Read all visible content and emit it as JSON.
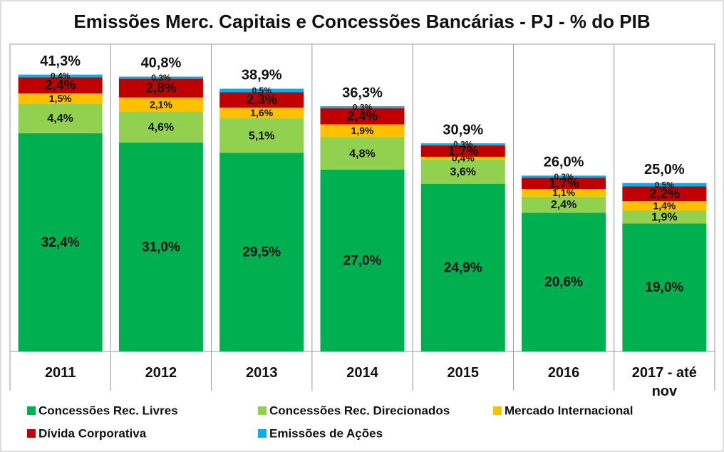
{
  "chart_data": {
    "type": "stacked-bar",
    "title": "Emissões Merc. Capitais e Concessões Bancárias - PJ - % do PIB",
    "categories": [
      "2011",
      "2012",
      "2013",
      "2014",
      "2015",
      "2016",
      "2017 - até nov"
    ],
    "series": [
      {
        "name": "Concessões Rec. Livres",
        "color": "#00b050",
        "values": [
          32.4,
          31.0,
          29.5,
          27.0,
          24.9,
          20.6,
          19.0
        ],
        "value_labels": [
          "32,4%",
          "31,0%",
          "29,5%",
          "27,0%",
          "24,9%",
          "20,6%",
          "19,0%"
        ]
      },
      {
        "name": "Concessões Rec. Direcionados",
        "color": "#92d050",
        "values": [
          4.4,
          4.6,
          5.1,
          4.8,
          3.6,
          2.4,
          1.9
        ],
        "value_labels": [
          "4,4%",
          "4,6%",
          "5,1%",
          "4,8%",
          "3,6%",
          "2,4%",
          "1,9%"
        ]
      },
      {
        "name": "Mercado Internacional",
        "color": "#ffc000",
        "values": [
          1.5,
          2.1,
          1.6,
          1.9,
          0.4,
          1.1,
          1.4
        ],
        "value_labels": [
          "1,5%",
          "2,1%",
          "1,6%",
          "1,9%",
          "0,4%",
          "1,1%",
          "1,4%"
        ]
      },
      {
        "name": "Dívida Corporativa",
        "color": "#c00000",
        "values": [
          2.4,
          2.8,
          2.3,
          2.4,
          1.7,
          1.7,
          2.2
        ],
        "value_labels": [
          "2,4%",
          "2,8%",
          "2,3%",
          "2,4%",
          "1,7%",
          "1,7%",
          "2,2%"
        ]
      },
      {
        "name": "Emissões de Ações",
        "color": "#00b0f0",
        "values": [
          0.4,
          0.3,
          0.5,
          0.3,
          0.3,
          0.3,
          0.5
        ],
        "value_labels": [
          "0,4%",
          "0,3%",
          "0,5%",
          "0,3%",
          "0,3%",
          "0,3%",
          "0,5%"
        ]
      }
    ],
    "totals": [
      41.3,
      40.8,
      38.9,
      36.3,
      30.9,
      26.0,
      25.0
    ],
    "total_labels": [
      "41,3%",
      "40,8%",
      "38,9%",
      "36,3%",
      "30,9%",
      "26,0%",
      "25,0%"
    ]
  }
}
